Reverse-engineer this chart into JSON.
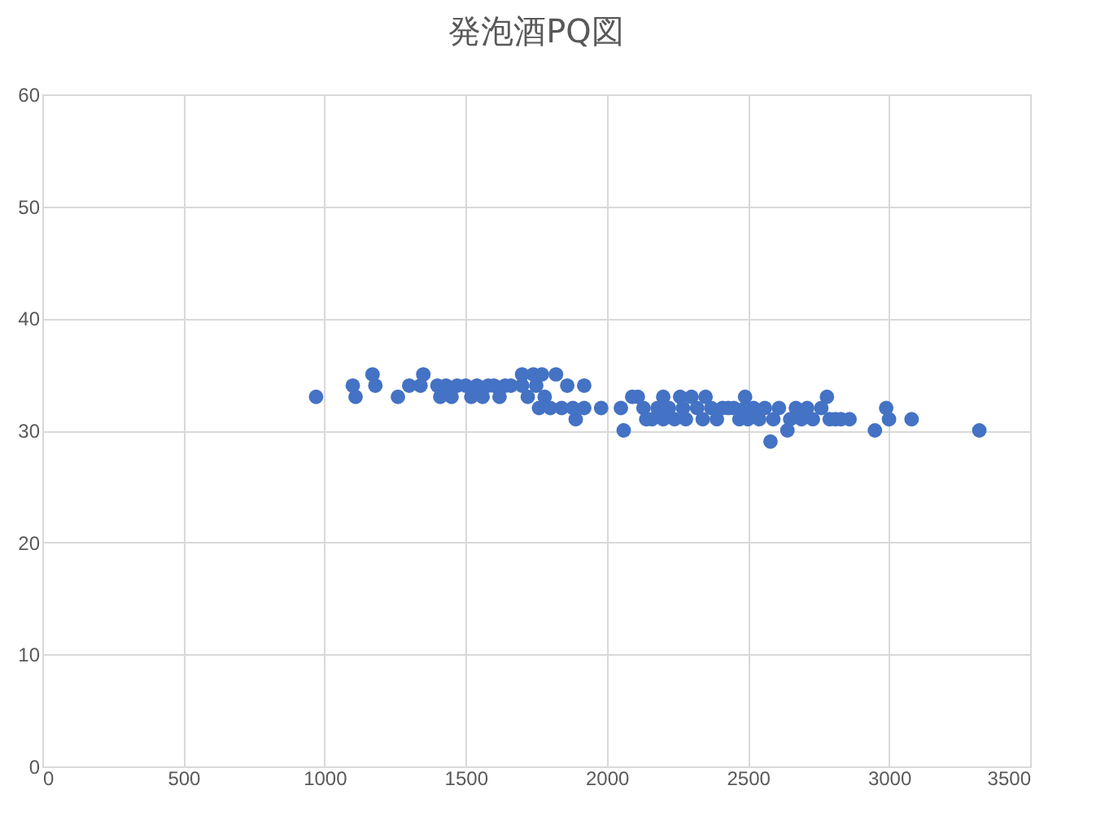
{
  "chart_data": {
    "type": "scatter",
    "title": "発泡酒PQ図",
    "x": [
      970,
      1100,
      1110,
      1170,
      1180,
      1260,
      1300,
      1350,
      1340,
      1400,
      1410,
      1430,
      1450,
      1470,
      1500,
      1520,
      1540,
      1560,
      1580,
      1600,
      1620,
      1640,
      1660,
      1700,
      1700,
      1720,
      1740,
      1750,
      1760,
      1770,
      1780,
      1800,
      1820,
      1840,
      1860,
      1880,
      1890,
      1920,
      1920,
      1980,
      2050,
      2060,
      2090,
      2110,
      2130,
      2140,
      2160,
      2180,
      2200,
      2200,
      2220,
      2240,
      2260,
      2270,
      2280,
      2300,
      2320,
      2340,
      2350,
      2370,
      2390,
      2410,
      2430,
      2450,
      2470,
      2490,
      2490,
      2500,
      2520,
      2540,
      2560,
      2580,
      2590,
      2610,
      2640,
      2650,
      2670,
      2690,
      2710,
      2730,
      2760,
      2780,
      2790,
      2810,
      2830,
      2860,
      2950,
      2990,
      3000,
      3080,
      3320
    ],
    "series": [
      {
        "color": "#4472c4",
        "values": [
          33,
          34,
          33,
          35,
          34,
          33,
          34,
          35,
          34,
          34,
          33,
          34,
          33,
          34,
          34,
          33,
          34,
          33,
          34,
          34,
          33,
          34,
          34,
          35,
          34,
          33,
          35,
          34,
          32,
          35,
          33,
          32,
          35,
          32,
          34,
          32,
          31,
          34,
          32,
          32,
          32,
          30,
          33,
          33,
          32,
          31,
          31,
          32,
          33,
          31,
          32,
          31,
          33,
          32,
          31,
          33,
          32,
          31,
          33,
          32,
          31,
          32,
          32,
          32,
          31,
          33,
          32,
          31,
          32,
          31,
          32,
          29,
          31,
          32,
          30,
          31,
          32,
          31,
          32,
          31,
          32,
          33,
          31,
          31,
          31,
          31,
          30,
          32,
          31,
          31,
          30
        ]
      }
    ],
    "xlim": [
      0,
      3500
    ],
    "xticks": [
      0,
      500,
      1000,
      1500,
      2000,
      2500,
      3000,
      3500
    ],
    "ylim": [
      0,
      60
    ],
    "yticks": [
      0,
      10,
      20,
      30,
      40,
      50,
      60
    ],
    "grid": true,
    "marker": "circle"
  }
}
